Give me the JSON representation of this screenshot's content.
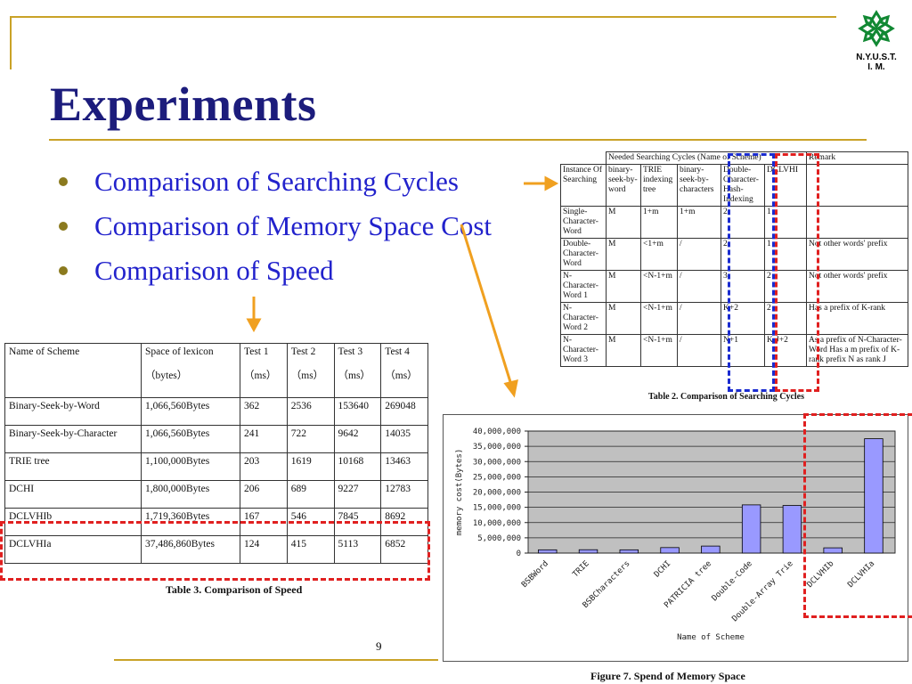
{
  "slide": {
    "title": "Experiments",
    "bullets": [
      "Comparison of Searching Cycles",
      "Comparison of Memory Space Cost",
      "Comparison of Speed"
    ],
    "logo_line1": "N.Y.U.S.T.",
    "logo_line2": "I. M.",
    "page_number": "9"
  },
  "colors": {
    "title": "#1c1c7c",
    "bullet_text": "#2222cc",
    "accent_gold": "#c9a227",
    "arrow_orange": "#f0a020",
    "highlight_red": "#e02020",
    "highlight_blue": "#1a2bd0",
    "bar_fill": "#9999ff",
    "plot_bg": "#c0c0c0"
  },
  "table2": {
    "header_group": "Needed Searching Cycles (Name of Scheme)",
    "header_remark": "Remark",
    "columns": [
      "Instance Of Searching",
      "binary-seek-by-word",
      "TRIE indexing tree",
      "binary-seek-by-characters",
      "Double-Character-Hash-Indexing",
      "DCLVHI",
      "Remark"
    ],
    "rows": [
      [
        "Single-Character-Word",
        "M",
        "1+m",
        "1+m",
        "2",
        "1",
        ""
      ],
      [
        "Double-Character-Word",
        "M",
        "<1+m",
        "/",
        "2",
        "1",
        "Not other words' prefix"
      ],
      [
        "N-Character-Word 1",
        "M",
        "<N-1+m",
        "/",
        "3",
        "2",
        "Not other words' prefix"
      ],
      [
        "N-Character-Word 2",
        "M",
        "<N-1+m",
        "/",
        "K+2",
        "2",
        "Has a prefix of K-rank"
      ],
      [
        "N-Character-Word 3",
        "M",
        "<N-1+m",
        "/",
        "N+1",
        "K-J+2",
        "As a prefix of N-Character-Word Has a m prefix of K-rank prefix N as rank J"
      ]
    ],
    "caption": "Table 2. Comparison of Searching Cycles"
  },
  "table3": {
    "headers": [
      {
        "name": "Name of Scheme",
        "unit": ""
      },
      {
        "name": "Space of lexicon",
        "unit": "（bytes）"
      },
      {
        "name": "Test 1",
        "unit": "（ms）"
      },
      {
        "name": "Test 2",
        "unit": "（ms）"
      },
      {
        "name": "Test 3",
        "unit": "（ms）"
      },
      {
        "name": "Test 4",
        "unit": "（ms）"
      }
    ],
    "rows": [
      [
        "Binary-Seek-by-Word",
        "1,066,560Bytes",
        "362",
        "2536",
        "153640",
        "269048"
      ],
      [
        "Binary-Seek-by-Character",
        "1,066,560Bytes",
        "241",
        "722",
        "9642",
        "14035"
      ],
      [
        "TRIE tree",
        "1,100,000Bytes",
        "203",
        "1619",
        "10168",
        "13463"
      ],
      [
        "DCHI",
        "1,800,000Bytes",
        "206",
        "689",
        "9227",
        "12783"
      ],
      [
        "DCLVHIb",
        "1,719,360Bytes",
        "167",
        "546",
        "7845",
        "8692"
      ],
      [
        "DCLVHIa",
        "37,486,860Bytes",
        "124",
        "415",
        "5113",
        "6852"
      ]
    ],
    "caption": "Table 3. Comparison of Speed"
  },
  "chart_data": {
    "type": "bar",
    "title": "",
    "caption": "Figure 7. Spend of Memory Space",
    "xlabel": "Name of Scheme",
    "ylabel": "memory cost(Bytes)",
    "ylim": [
      0,
      40000000
    ],
    "yticks": [
      "0",
      "5,000,000",
      "10,000,000",
      "15,000,000",
      "20,000,000",
      "25,000,000",
      "30,000,000",
      "35,000,000",
      "40,000,000"
    ],
    "categories": [
      "BSBWord",
      "TRIE",
      "BSBCharacters",
      "DCHI",
      "PATRICIA tree",
      "Double-Code",
      "Double-Array Trie",
      "DCLVHIb",
      "DCLVHIa"
    ],
    "values": [
      1066560,
      1100000,
      1066560,
      1800000,
      2300000,
      15800000,
      15600000,
      1719360,
      37486860
    ],
    "grid": true,
    "legend": "none"
  }
}
